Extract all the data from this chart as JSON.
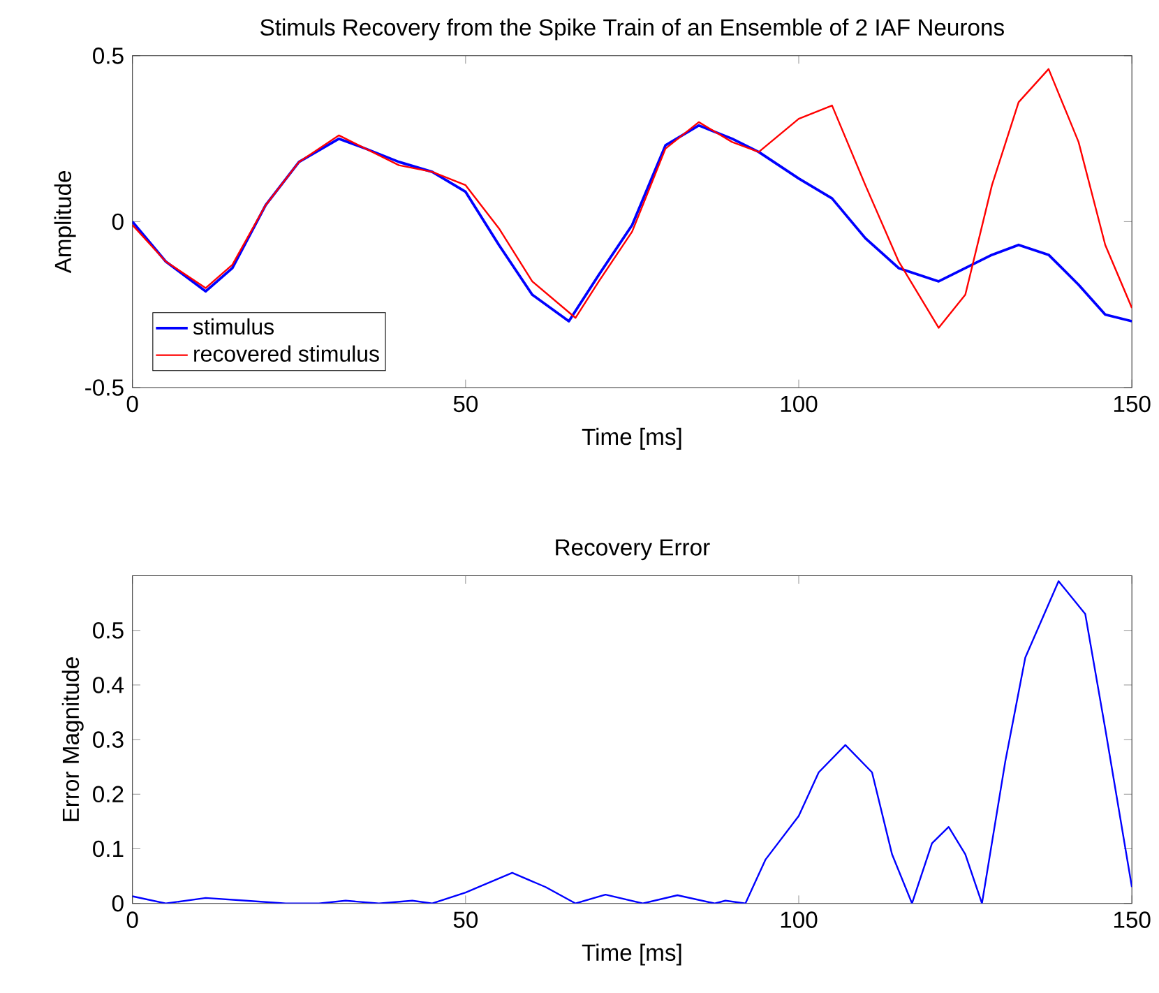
{
  "chart_data": [
    {
      "type": "line",
      "title": "Stimuls Recovery from the Spike Train of an Ensemble of 2 IAF Neurons",
      "xlabel": "Time [ms]",
      "ylabel": "Amplitude",
      "xlim": [
        0,
        150
      ],
      "ylim": [
        -0.5,
        0.5
      ],
      "xticks": [
        0,
        50,
        100,
        150
      ],
      "yticks": [
        {
          "value": -0.5,
          "label": "-0.5"
        },
        0,
        0.5
      ],
      "grid": false,
      "legend": "bottom left",
      "marker": "none",
      "line_style": "solid",
      "series": [
        {
          "name": "stimulus",
          "color": "#0000ff",
          "x": [
            0,
            5,
            11,
            15,
            20,
            25,
            31,
            35,
            40,
            45,
            50,
            55,
            60,
            65.5,
            70,
            75,
            80,
            85,
            90,
            94,
            100,
            105,
            110,
            115,
            121,
            125,
            129,
            133,
            137.5,
            142,
            146,
            150
          ],
          "values": [
            0,
            -0.12,
            -0.21,
            -0.14,
            0.05,
            0.18,
            0.25,
            0.22,
            0.18,
            0.15,
            0.09,
            -0.07,
            -0.22,
            -0.3,
            -0.16,
            -0.01,
            0.23,
            0.29,
            0.25,
            0.21,
            0.13,
            0.07,
            -0.05,
            -0.14,
            -0.18,
            -0.14,
            -0.1,
            -0.07,
            -0.1,
            -0.19,
            -0.28,
            -0.3
          ]
        },
        {
          "name": "recovered stimulus",
          "color": "#ff0000",
          "x": [
            0,
            5,
            11,
            15,
            20,
            25,
            31,
            35,
            40,
            45,
            50,
            55,
            60,
            66.5,
            70,
            75,
            80,
            85,
            90,
            94,
            100,
            105,
            110,
            115,
            121,
            125,
            129,
            133,
            137.5,
            142,
            146,
            150
          ],
          "values": [
            -0.01,
            -0.12,
            -0.2,
            -0.13,
            0.05,
            0.18,
            0.26,
            0.22,
            0.17,
            0.15,
            0.11,
            -0.02,
            -0.18,
            -0.29,
            -0.18,
            -0.03,
            0.22,
            0.3,
            0.24,
            0.21,
            0.31,
            0.35,
            0.11,
            -0.12,
            -0.32,
            -0.22,
            0.11,
            0.36,
            0.46,
            0.24,
            -0.07,
            -0.26
          ]
        }
      ]
    },
    {
      "type": "line",
      "title": "Recovery Error",
      "xlabel": "Time [ms]",
      "ylabel": "Error Magnitude",
      "xlim": [
        0,
        150
      ],
      "ylim": [
        0,
        0.6
      ],
      "xticks": [
        0,
        50,
        100,
        150
      ],
      "yticks": [
        0,
        0.1,
        0.2,
        0.3,
        0.4,
        0.5
      ],
      "grid": false,
      "legend": false,
      "marker": "none",
      "line_style": "solid",
      "series": [
        {
          "color": "#0000ff",
          "x": [
            0,
            5,
            11,
            17,
            23,
            28,
            32,
            37,
            42,
            45,
            50,
            57,
            62,
            66.5,
            71,
            76.6,
            81.8,
            87.4,
            89,
            92,
            95,
            100,
            103,
            107,
            111,
            114,
            117,
            120,
            122.5,
            125,
            127.5,
            131,
            134,
            139,
            143,
            146,
            150
          ],
          "values": [
            0.013,
            0,
            0.01,
            0.005,
            0,
            0,
            0.005,
            0,
            0.005,
            0,
            0.02,
            0.056,
            0.03,
            0,
            0.016,
            0,
            0.015,
            0,
            0.005,
            0,
            0.08,
            0.16,
            0.24,
            0.29,
            0.24,
            0.09,
            0,
            0.11,
            0.14,
            0.09,
            0,
            0.26,
            0.45,
            0.59,
            0.53,
            0.32,
            0.03
          ]
        }
      ]
    }
  ]
}
